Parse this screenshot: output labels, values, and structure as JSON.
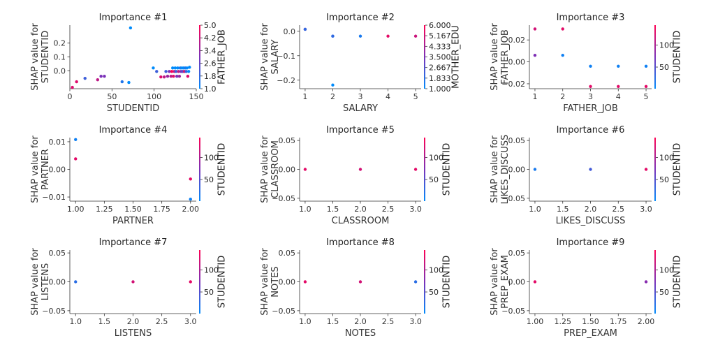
{
  "colorbar_colors": {
    "low": "#008bfb",
    "high": "#ff0052"
  },
  "chart_data": [
    {
      "type": "scatter",
      "title": "Importance #1",
      "xlabel": "STUDENTID",
      "ylabel": [
        "SHAP value for",
        "STUDENTID"
      ],
      "xlim": [
        0,
        150
      ],
      "ylim": [
        -0.13,
        0.33
      ],
      "xticks": [
        0,
        50,
        100,
        150
      ],
      "xtick_labels": [
        "0",
        "50",
        "100",
        "150"
      ],
      "yticks": [
        -0.0,
        0.1,
        0.2
      ],
      "ytick_labels": [
        "0.0",
        "0.1",
        "0.2"
      ],
      "colorbar": {
        "label": "FATHER_JOB",
        "min": 1.0,
        "max": 5.0,
        "ticks": [
          1.0,
          1.8,
          2.6,
          3.4,
          4.2,
          5.0
        ],
        "tick_labels": [
          "1.0",
          "1.8",
          "2.6",
          "3.4",
          "4.2",
          "5.0"
        ]
      },
      "points": [
        {
          "x": 3,
          "y": -0.12,
          "c": 4.5
        },
        {
          "x": 8,
          "y": -0.08,
          "c": 4.5
        },
        {
          "x": 18,
          "y": -0.055,
          "c": 2
        },
        {
          "x": 33,
          "y": -0.065,
          "c": 4
        },
        {
          "x": 37,
          "y": -0.04,
          "c": 3
        },
        {
          "x": 41,
          "y": -0.04,
          "c": 3
        },
        {
          "x": 62,
          "y": -0.08,
          "c": 1.5
        },
        {
          "x": 70,
          "y": -0.085,
          "c": 1
        },
        {
          "x": 72,
          "y": 0.31,
          "c": 1
        },
        {
          "x": 99,
          "y": 0.02,
          "c": 1
        },
        {
          "x": 103,
          "y": -0.005,
          "c": 2
        },
        {
          "x": 108,
          "y": -0.045,
          "c": 4.5
        },
        {
          "x": 112,
          "y": -0.045,
          "c": 4
        },
        {
          "x": 114,
          "y": -0.005,
          "c": 2
        },
        {
          "x": 116,
          "y": -0.04,
          "c": 3.5
        },
        {
          "x": 118,
          "y": -0.005,
          "c": 3
        },
        {
          "x": 120,
          "y": -0.04,
          "c": 4
        },
        {
          "x": 121,
          "y": -0.005,
          "c": 5
        },
        {
          "x": 122,
          "y": 0.02,
          "c": 1
        },
        {
          "x": 123,
          "y": -0.04,
          "c": 4.5
        },
        {
          "x": 124,
          "y": -0.005,
          "c": 4
        },
        {
          "x": 125,
          "y": 0.02,
          "c": 1
        },
        {
          "x": 126,
          "y": -0.005,
          "c": 2
        },
        {
          "x": 127,
          "y": -0.04,
          "c": 3
        },
        {
          "x": 128,
          "y": 0.02,
          "c": 1
        },
        {
          "x": 129,
          "y": -0.005,
          "c": 4
        },
        {
          "x": 130,
          "y": -0.04,
          "c": 3.5
        },
        {
          "x": 131,
          "y": 0.02,
          "c": 1.5
        },
        {
          "x": 132,
          "y": -0.005,
          "c": 3
        },
        {
          "x": 133,
          "y": 0.02,
          "c": 1
        },
        {
          "x": 134,
          "y": -0.005,
          "c": 2.5
        },
        {
          "x": 135,
          "y": 0.02,
          "c": 1
        },
        {
          "x": 136,
          "y": -0.005,
          "c": 4.5
        },
        {
          "x": 137,
          "y": 0.02,
          "c": 1.5
        },
        {
          "x": 138,
          "y": -0.005,
          "c": 2
        },
        {
          "x": 139,
          "y": 0.02,
          "c": 1
        },
        {
          "x": 140,
          "y": -0.04,
          "c": 4.5
        },
        {
          "x": 141,
          "y": -0.005,
          "c": 1
        },
        {
          "x": 142,
          "y": 0.025,
          "c": 1
        }
      ]
    },
    {
      "type": "scatter",
      "title": "Importance #2",
      "xlabel": "SALARY",
      "ylabel": [
        "SHAP value for",
        "SALARY"
      ],
      "xlim": [
        0.8,
        5.2
      ],
      "ylim": [
        -0.235,
        0.025
      ],
      "xticks": [
        1,
        2,
        3,
        4,
        5
      ],
      "xtick_labels": [
        "1",
        "2",
        "3",
        "4",
        "5"
      ],
      "yticks": [
        0.0,
        -0.1,
        -0.2
      ],
      "ytick_labels": [
        "0.0",
        "−0.1",
        "−0.2"
      ],
      "colorbar": {
        "label": "MOTHER_EDU",
        "min": 1.0,
        "max": 6.0,
        "ticks": [
          1.0,
          1.833,
          2.667,
          3.5,
          4.333,
          5.167,
          6.0
        ],
        "tick_labels": [
          "1.000",
          "1.833",
          "2.667",
          "3.500",
          "4.333",
          "5.167",
          "6.000"
        ]
      },
      "points": [
        {
          "x": 1,
          "y": 0.008,
          "c": 3.5
        },
        {
          "x": 1,
          "y": 0.008,
          "c": 2
        },
        {
          "x": 2,
          "y": -0.02,
          "c": 1
        },
        {
          "x": 2,
          "y": -0.02,
          "c": 2
        },
        {
          "x": 2,
          "y": -0.22,
          "c": 1
        },
        {
          "x": 3,
          "y": -0.02,
          "c": 1.5
        },
        {
          "x": 4,
          "y": -0.02,
          "c": 5.5
        },
        {
          "x": 5,
          "y": -0.02,
          "c": 5
        }
      ]
    },
    {
      "type": "scatter",
      "title": "Importance #3",
      "xlabel": "FATHER_JOB",
      "ylabel": [
        "SHAP value for",
        "FATHER_JOB"
      ],
      "xlim": [
        0.8,
        5.2
      ],
      "ylim": [
        -0.0245,
        0.0335
      ],
      "xticks": [
        1,
        2,
        3,
        4,
        5
      ],
      "xtick_labels": [
        "1",
        "2",
        "3",
        "4",
        "5"
      ],
      "yticks": [
        0.02,
        0.0,
        -0.02
      ],
      "ytick_labels": [
        "0.02",
        "0.00",
        "−0.02"
      ],
      "colorbar": {
        "label": "STUDENTID",
        "min": 1,
        "max": 145,
        "ticks": [
          50,
          100
        ],
        "tick_labels": [
          "50",
          "100"
        ]
      },
      "points": [
        {
          "x": 1,
          "y": 0.03,
          "c": 120
        },
        {
          "x": 1,
          "y": 0.006,
          "c": 75
        },
        {
          "x": 2,
          "y": 0.03,
          "c": 130
        },
        {
          "x": 2,
          "y": 0.006,
          "c": 10
        },
        {
          "x": 3,
          "y": -0.004,
          "c": 10
        },
        {
          "x": 3,
          "y": -0.0225,
          "c": 130
        },
        {
          "x": 4,
          "y": -0.004,
          "c": 10
        },
        {
          "x": 4,
          "y": -0.0225,
          "c": 130
        },
        {
          "x": 5,
          "y": -0.004,
          "c": 10
        },
        {
          "x": 5,
          "y": -0.0225,
          "c": 130
        }
      ]
    },
    {
      "type": "scatter",
      "title": "Importance #4",
      "xlabel": "PARTNER",
      "ylabel": [
        "SHAP value for",
        "PARTNER"
      ],
      "xlim": [
        0.95,
        2.05
      ],
      "ylim": [
        -0.0115,
        0.0115
      ],
      "xticks": [
        1.0,
        1.25,
        1.5,
        1.75,
        2.0
      ],
      "xtick_labels": [
        "1.00",
        "1.25",
        "1.50",
        "1.75",
        "2.00"
      ],
      "yticks": [
        0.01,
        0.0,
        -0.01
      ],
      "ytick_labels": [
        "0.01",
        "0.00",
        "−0.01"
      ],
      "colorbar": {
        "label": "STUDENTID",
        "min": 1,
        "max": 145,
        "ticks": [
          50,
          100
        ],
        "tick_labels": [
          "50",
          "100"
        ]
      },
      "points": [
        {
          "x": 1,
          "y": 0.0108,
          "c": 10
        },
        {
          "x": 1,
          "y": 0.0038,
          "c": 130
        },
        {
          "x": 2,
          "y": -0.0035,
          "c": 130
        },
        {
          "x": 2,
          "y": -0.0108,
          "c": 10
        }
      ]
    },
    {
      "type": "scatter",
      "title": "Importance #5",
      "xlabel": "CLASSROOM",
      "ylabel": [
        "SHAP value for",
        "CLASSROOM"
      ],
      "xlim": [
        0.9,
        3.1
      ],
      "ylim": [
        -0.055,
        0.055
      ],
      "xticks": [
        1.0,
        1.5,
        2.0,
        2.5,
        3.0
      ],
      "xtick_labels": [
        "1.0",
        "1.5",
        "2.0",
        "2.5",
        "3.0"
      ],
      "yticks": [
        0.05,
        0.0,
        -0.05
      ],
      "ytick_labels": [
        "0.05",
        "0.00",
        "−0.05"
      ],
      "colorbar": {
        "label": "STUDENTID",
        "min": 1,
        "max": 145,
        "ticks": [
          50,
          100
        ],
        "tick_labels": [
          "50",
          "100"
        ]
      },
      "points": [
        {
          "x": 1,
          "y": 0.0,
          "c": 130
        },
        {
          "x": 2,
          "y": 0.0,
          "c": 120
        },
        {
          "x": 3,
          "y": 0.0,
          "c": 130
        }
      ]
    },
    {
      "type": "scatter",
      "title": "Importance #6",
      "xlabel": "LIKES_DISCUSS",
      "ylabel": [
        "SHAP value for",
        "LIKES_DISCUSS"
      ],
      "xlim": [
        0.9,
        3.1
      ],
      "ylim": [
        -0.055,
        0.055
      ],
      "xticks": [
        1.0,
        1.5,
        2.0,
        2.5,
        3.0
      ],
      "xtick_labels": [
        "1.0",
        "1.5",
        "2.0",
        "2.5",
        "3.0"
      ],
      "yticks": [
        0.05,
        0.0,
        -0.05
      ],
      "ytick_labels": [
        "0.05",
        "0.00",
        "−0.05"
      ],
      "colorbar": {
        "label": "STUDENTID",
        "min": 1,
        "max": 145,
        "ticks": [
          50,
          100
        ],
        "tick_labels": [
          "50",
          "100"
        ]
      },
      "points": [
        {
          "x": 1,
          "y": 0.0,
          "c": 15
        },
        {
          "x": 2,
          "y": 0.0,
          "c": 40
        },
        {
          "x": 3,
          "y": 0.0,
          "c": 130
        }
      ]
    },
    {
      "type": "scatter",
      "title": "Importance #7",
      "xlabel": "LISTENS",
      "ylabel": [
        "SHAP value for",
        "LISTENS"
      ],
      "xlim": [
        0.9,
        3.1
      ],
      "ylim": [
        -0.055,
        0.055
      ],
      "xticks": [
        1.0,
        1.5,
        2.0,
        2.5,
        3.0
      ],
      "xtick_labels": [
        "1.0",
        "1.5",
        "2.0",
        "2.5",
        "3.0"
      ],
      "yticks": [
        0.05,
        0.0,
        -0.05
      ],
      "ytick_labels": [
        "0.05",
        "0.00",
        "−0.05"
      ],
      "colorbar": {
        "label": "STUDENTID",
        "min": 1,
        "max": 145,
        "ticks": [
          50,
          100
        ],
        "tick_labels": [
          "50",
          "100"
        ]
      },
      "points": [
        {
          "x": 1,
          "y": 0.0,
          "c": 25
        },
        {
          "x": 2,
          "y": 0.0,
          "c": 120
        },
        {
          "x": 3,
          "y": 0.0,
          "c": 130
        }
      ]
    },
    {
      "type": "scatter",
      "title": "Importance #8",
      "xlabel": "NOTES",
      "ylabel": [
        "SHAP value for",
        "NOTES"
      ],
      "xlim": [
        0.9,
        3.1
      ],
      "ylim": [
        -0.055,
        0.055
      ],
      "xticks": [
        1.0,
        1.5,
        2.0,
        2.5,
        3.0
      ],
      "xtick_labels": [
        "1.0",
        "1.5",
        "2.0",
        "2.5",
        "3.0"
      ],
      "yticks": [
        0.05,
        0.0,
        -0.05
      ],
      "ytick_labels": [
        "0.05",
        "0.00",
        "−0.05"
      ],
      "colorbar": {
        "label": "STUDENTID",
        "min": 1,
        "max": 145,
        "ticks": [
          50,
          100
        ],
        "tick_labels": [
          "50",
          "100"
        ]
      },
      "points": [
        {
          "x": 1,
          "y": 0.0,
          "c": 130
        },
        {
          "x": 2,
          "y": 0.0,
          "c": 120
        },
        {
          "x": 3,
          "y": 0.0,
          "c": 25
        }
      ]
    },
    {
      "type": "scatter",
      "title": "Importance #9",
      "xlabel": "PREP_EXAM",
      "ylabel": [
        "SHAP value for",
        "PREP_EXAM"
      ],
      "xlim": [
        0.95,
        2.05
      ],
      "ylim": [
        -0.055,
        0.055
      ],
      "xticks": [
        1.0,
        1.25,
        1.5,
        1.75,
        2.0
      ],
      "xtick_labels": [
        "1.00",
        "1.25",
        "1.50",
        "1.75",
        "2.00"
      ],
      "yticks": [
        0.05,
        0.0,
        -0.05
      ],
      "ytick_labels": [
        "0.05",
        "0.00",
        "−0.05"
      ],
      "colorbar": {
        "label": "STUDENTID",
        "min": 1,
        "max": 145,
        "ticks": [
          50,
          100
        ],
        "tick_labels": [
          "50",
          "100"
        ]
      },
      "points": [
        {
          "x": 1,
          "y": 0.0,
          "c": 130
        },
        {
          "x": 2,
          "y": 0.0,
          "c": 80
        }
      ]
    }
  ]
}
